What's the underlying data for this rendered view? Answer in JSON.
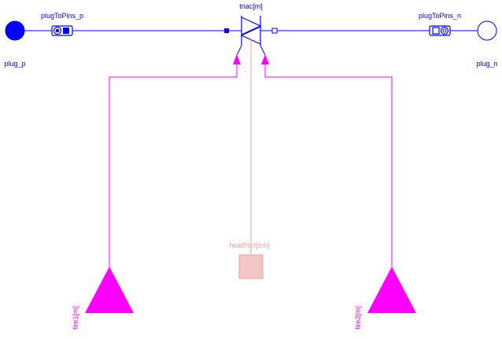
{
  "diagram": {
    "components": {
      "plug_p": {
        "label": "plug_p"
      },
      "plug_n": {
        "label": "plug_n"
      },
      "plugToPins_p": {
        "label": "plugToPins_p"
      },
      "plugToPins_n": {
        "label": "plugToPins_n"
      },
      "triac": {
        "label": "triac[m]"
      },
      "heatPort": {
        "label": "heatPort[mh]"
      },
      "fire1": {
        "label": "fire1[m]"
      },
      "fire2": {
        "label": "fire2[m]"
      }
    },
    "colors": {
      "electrical": "#0000ff",
      "signal": "#ff00ff",
      "thermal": "#f0a0a0"
    }
  }
}
